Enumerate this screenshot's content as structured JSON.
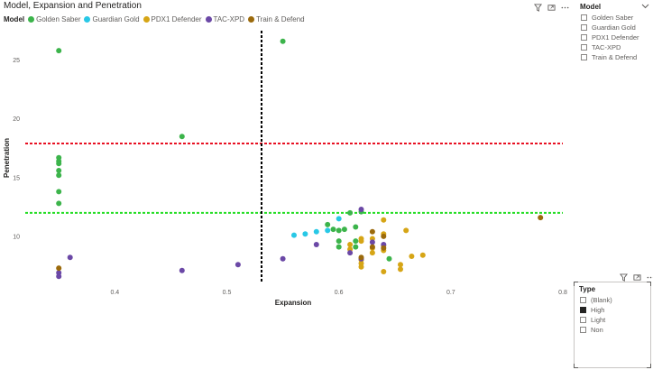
{
  "chart": {
    "title": "Model, Expansion and Penetration",
    "legend_title": "Model"
  },
  "icons": {
    "filter": "filter-icon",
    "focus": "focus-mode-icon",
    "more": "more-options-icon",
    "chevron": "chevron-down-icon"
  },
  "slicers": {
    "model": {
      "title": "Model",
      "items": [
        {
          "label": "Golden Saber",
          "checked": false
        },
        {
          "label": "Guardian Gold",
          "checked": false
        },
        {
          "label": "PDX1 Defender",
          "checked": false
        },
        {
          "label": "TAC-XPD",
          "checked": false
        },
        {
          "label": "Train & Defend",
          "checked": false
        }
      ]
    },
    "type": {
      "title": "Type",
      "items": [
        {
          "label": "(Blank)",
          "checked": false
        },
        {
          "label": "High",
          "checked": true
        },
        {
          "label": "Light",
          "checked": false
        },
        {
          "label": "Non",
          "checked": false
        }
      ]
    }
  },
  "chart_data": {
    "type": "scatter",
    "title": "Model, Expansion and Penetration",
    "xlabel": "Expansion",
    "ylabel": "Penetration",
    "xlim": [
      0.32,
      0.8
    ],
    "ylim": [
      6.0,
      27.5
    ],
    "xticks": [
      0.4,
      0.5,
      0.6,
      0.7,
      0.8
    ],
    "xtick_labels": [
      "0.4",
      "0.5",
      "0.6",
      "0.7",
      "0.8"
    ],
    "yticks": [
      10,
      15,
      20,
      25
    ],
    "ytick_labels": [
      "10",
      "15",
      "20",
      "25"
    ],
    "grid": false,
    "legend_position": "top-left",
    "reference_lines": [
      {
        "axis": "y",
        "value": 17.9,
        "color": "#e81123"
      },
      {
        "axis": "y",
        "value": 12.0,
        "color": "#22dd22"
      },
      {
        "axis": "x",
        "value": 0.531,
        "color": "#000000"
      }
    ],
    "series": [
      {
        "name": "Golden Saber",
        "color": "#3cb44b",
        "points": [
          [
            0.35,
            25.8
          ],
          [
            0.35,
            16.7
          ],
          [
            0.35,
            16.4
          ],
          [
            0.35,
            16.2
          ],
          [
            0.35,
            15.6
          ],
          [
            0.35,
            15.2
          ],
          [
            0.35,
            13.8
          ],
          [
            0.35,
            12.8
          ],
          [
            0.46,
            18.5
          ],
          [
            0.55,
            26.6
          ],
          [
            0.59,
            11.0
          ],
          [
            0.595,
            10.6
          ],
          [
            0.6,
            10.5
          ],
          [
            0.6,
            9.6
          ],
          [
            0.6,
            9.1
          ],
          [
            0.605,
            10.6
          ],
          [
            0.61,
            12.0
          ],
          [
            0.615,
            10.8
          ],
          [
            0.615,
            9.6
          ],
          [
            0.615,
            9.1
          ],
          [
            0.62,
            12.1
          ],
          [
            0.645,
            8.1
          ]
        ]
      },
      {
        "name": "Guardian Gold",
        "color": "#28c8e6",
        "points": [
          [
            0.56,
            10.1
          ],
          [
            0.57,
            10.2
          ],
          [
            0.58,
            10.4
          ],
          [
            0.59,
            10.5
          ],
          [
            0.6,
            11.5
          ]
        ]
      },
      {
        "name": "PDX1 Defender",
        "color": "#d6a516",
        "points": [
          [
            0.61,
            9.3
          ],
          [
            0.61,
            8.9
          ],
          [
            0.62,
            9.8
          ],
          [
            0.62,
            9.6
          ],
          [
            0.62,
            8.0
          ],
          [
            0.62,
            7.7
          ],
          [
            0.62,
            7.4
          ],
          [
            0.63,
            9.8
          ],
          [
            0.63,
            9.0
          ],
          [
            0.63,
            8.6
          ],
          [
            0.64,
            11.4
          ],
          [
            0.64,
            10.2
          ],
          [
            0.64,
            9.2
          ],
          [
            0.64,
            8.8
          ],
          [
            0.64,
            7.0
          ],
          [
            0.655,
            7.6
          ],
          [
            0.655,
            7.2
          ],
          [
            0.66,
            10.5
          ],
          [
            0.665,
            8.3
          ],
          [
            0.675,
            8.4
          ]
        ]
      },
      {
        "name": "TAC-XPD",
        "color": "#6b48a6",
        "points": [
          [
            0.35,
            6.9
          ],
          [
            0.35,
            6.6
          ],
          [
            0.36,
            8.2
          ],
          [
            0.46,
            7.1
          ],
          [
            0.51,
            7.6
          ],
          [
            0.55,
            8.1
          ],
          [
            0.58,
            9.3
          ],
          [
            0.61,
            8.6
          ],
          [
            0.62,
            12.3
          ],
          [
            0.62,
            8.1
          ],
          [
            0.63,
            9.5
          ],
          [
            0.64,
            9.3
          ]
        ]
      },
      {
        "name": "Train & Defend",
        "color": "#9b6a0c",
        "points": [
          [
            0.35,
            7.3
          ],
          [
            0.62,
            8.2
          ],
          [
            0.63,
            10.4
          ],
          [
            0.63,
            9.1
          ],
          [
            0.64,
            10.0
          ],
          [
            0.64,
            9.0
          ],
          [
            0.78,
            11.6
          ]
        ]
      }
    ]
  }
}
